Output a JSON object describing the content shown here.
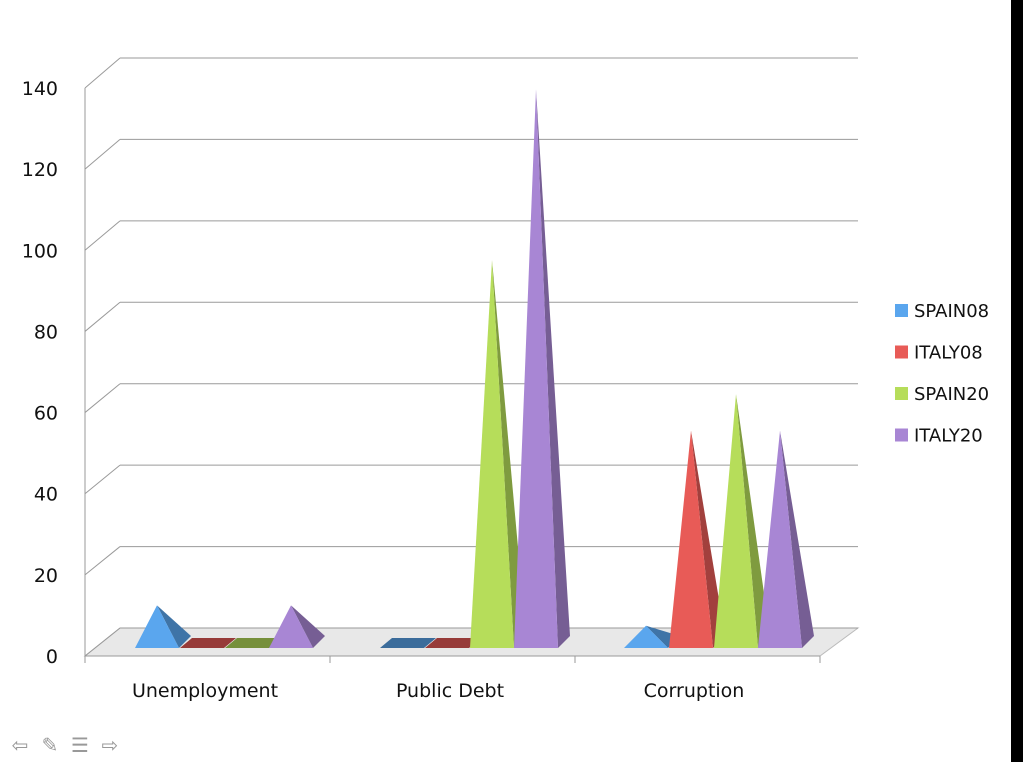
{
  "chart_data": {
    "type": "bar",
    "style": "3d-pyramid",
    "categories": [
      "Unemployment",
      "Public Debt",
      "Corruption"
    ],
    "series": [
      {
        "name": "SPAIN08",
        "values": [
          9,
          0,
          4
        ],
        "color": "#5aa6ee"
      },
      {
        "name": "ITALY08",
        "values": [
          0,
          0,
          52
        ],
        "color": "#e85b57"
      },
      {
        "name": "SPAIN20",
        "values": [
          0,
          94,
          61
        ],
        "color": "#b6dd5a"
      },
      {
        "name": "ITALY20",
        "values": [
          9,
          136,
          52
        ],
        "color": "#a886d4"
      }
    ],
    "yticks": [
      "0",
      "20",
      "40",
      "60",
      "80",
      "100",
      "120",
      "140"
    ],
    "ylim": [
      0,
      140
    ],
    "grid": true,
    "legend": "right"
  },
  "nav": {
    "icons": [
      "back-arrow-icon",
      "pen-icon",
      "menu-icon",
      "forward-arrow-icon"
    ]
  }
}
